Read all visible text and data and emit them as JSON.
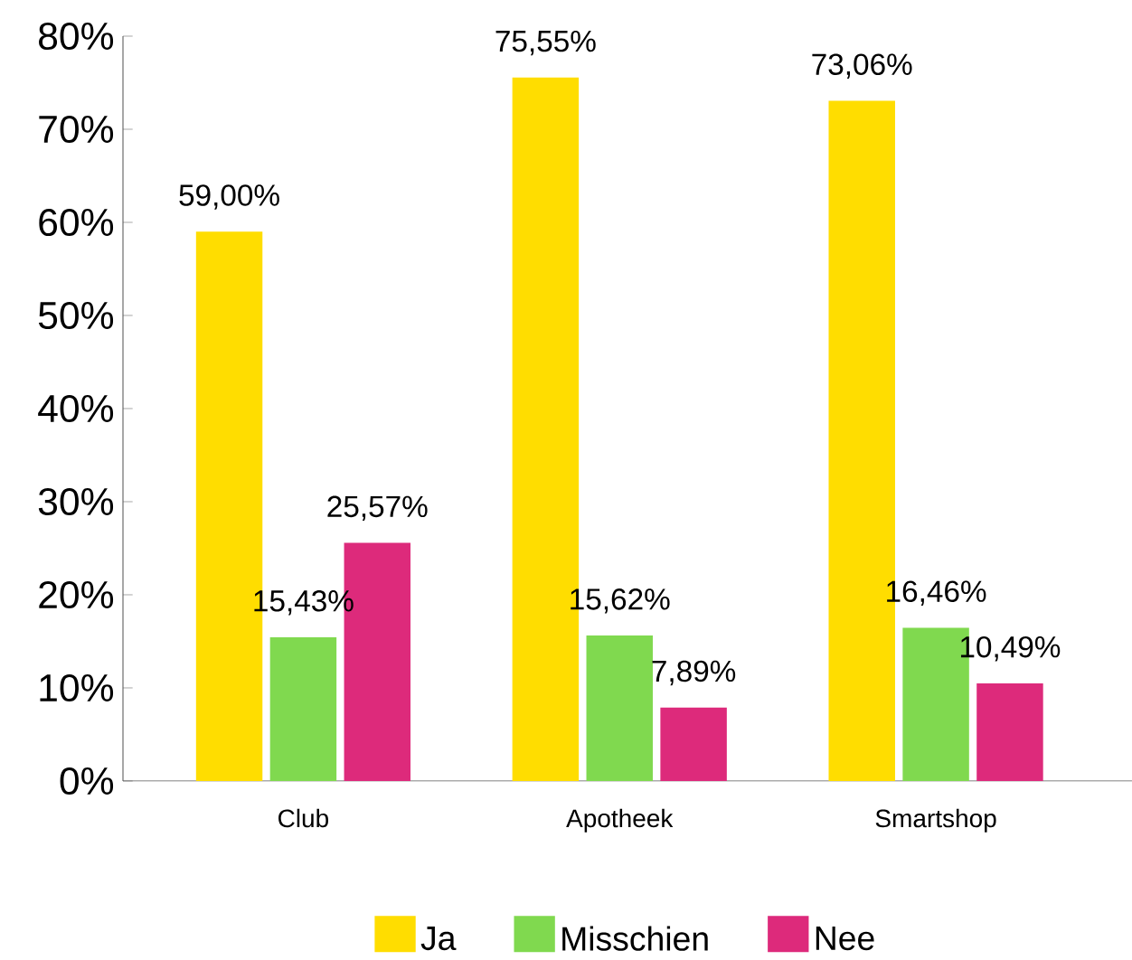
{
  "chart_data": {
    "type": "bar",
    "categories": [
      "Club",
      "Apotheek",
      "Smartshop"
    ],
    "series": [
      {
        "name": "Ja",
        "color": "#ffdd00",
        "values": [
          59.0,
          75.55,
          73.06
        ],
        "value_labels": [
          "59,00%",
          "75,55%",
          "73,06%"
        ]
      },
      {
        "name": "Misschien",
        "color": "#80d94f",
        "values": [
          15.43,
          15.62,
          16.46
        ],
        "value_labels": [
          "15,43%",
          "15,62%",
          "16,46%"
        ]
      },
      {
        "name": "Nee",
        "color": "#dd2a7b",
        "values": [
          25.57,
          7.89,
          10.49
        ],
        "value_labels": [
          "25,57%",
          "7,89%",
          "10,49%"
        ]
      }
    ],
    "ylim": [
      0,
      80
    ],
    "yticks": [
      {
        "value": 0,
        "label": "0%"
      },
      {
        "value": 10,
        "label": "10%"
      },
      {
        "value": 20,
        "label": "20%"
      },
      {
        "value": 30,
        "label": "30%"
      },
      {
        "value": 40,
        "label": "40%"
      },
      {
        "value": 50,
        "label": "50%"
      },
      {
        "value": 60,
        "label": "60%"
      },
      {
        "value": 70,
        "label": "70%"
      },
      {
        "value": 80,
        "label": "80%"
      }
    ],
    "legend": "bottom"
  }
}
